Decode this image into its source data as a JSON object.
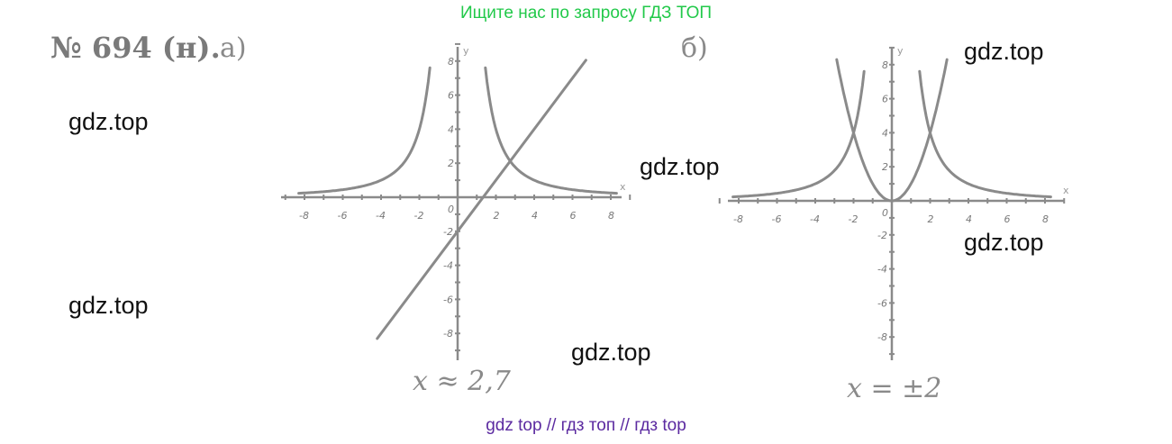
{
  "banner": "Ищите нас по запросу ГДЗ ТОП",
  "problem": {
    "number": "№ 694 (н).",
    "part_a": "а)",
    "part_b": "б)",
    "answer_a": "x ≈ 2,7",
    "answer_b": "x = ±2"
  },
  "watermarks": [
    "gdz.top",
    "gdz.top",
    "gdz.top",
    "gdz.top",
    "gdz.top",
    "gdz.top"
  ],
  "footer": "gdz top  //  гдз топ  //  гдз top",
  "chart_data": [
    {
      "type": "line",
      "title": "а)",
      "xlabel": "x",
      "ylabel": "y",
      "xlim": [
        -9,
        9
      ],
      "ylim": [
        -9,
        9
      ],
      "x_ticks": [
        -8,
        -6,
        -4,
        -2,
        0,
        2,
        4,
        6,
        8
      ],
      "y_ticks": [
        -8,
        -6,
        -4,
        -2,
        2,
        4,
        6,
        8
      ],
      "series": [
        {
          "name": "y = 16/x^2",
          "kind": "hyperbola",
          "k": 16
        },
        {
          "name": "y = 1.5x - 2",
          "kind": "linear",
          "m": 1.5,
          "b": -2,
          "x": [
            -4.2,
            6.7
          ]
        }
      ],
      "annotations": [
        "x ≈ 2,7"
      ]
    },
    {
      "type": "line",
      "title": "б)",
      "xlabel": "x",
      "ylabel": "y",
      "xlim": [
        -9,
        9
      ],
      "ylim": [
        -9,
        9
      ],
      "x_ticks": [
        -8,
        -6,
        -4,
        -2,
        0,
        2,
        4,
        6,
        8
      ],
      "y_ticks": [
        -8,
        -6,
        -4,
        -2,
        2,
        4,
        6,
        8
      ],
      "series": [
        {
          "name": "y = 16/x^2",
          "kind": "hyperbola",
          "k": 16
        },
        {
          "name": "y = x^2",
          "kind": "parabola",
          "a": 1
        }
      ],
      "annotations": [
        "x = ±2"
      ]
    }
  ]
}
